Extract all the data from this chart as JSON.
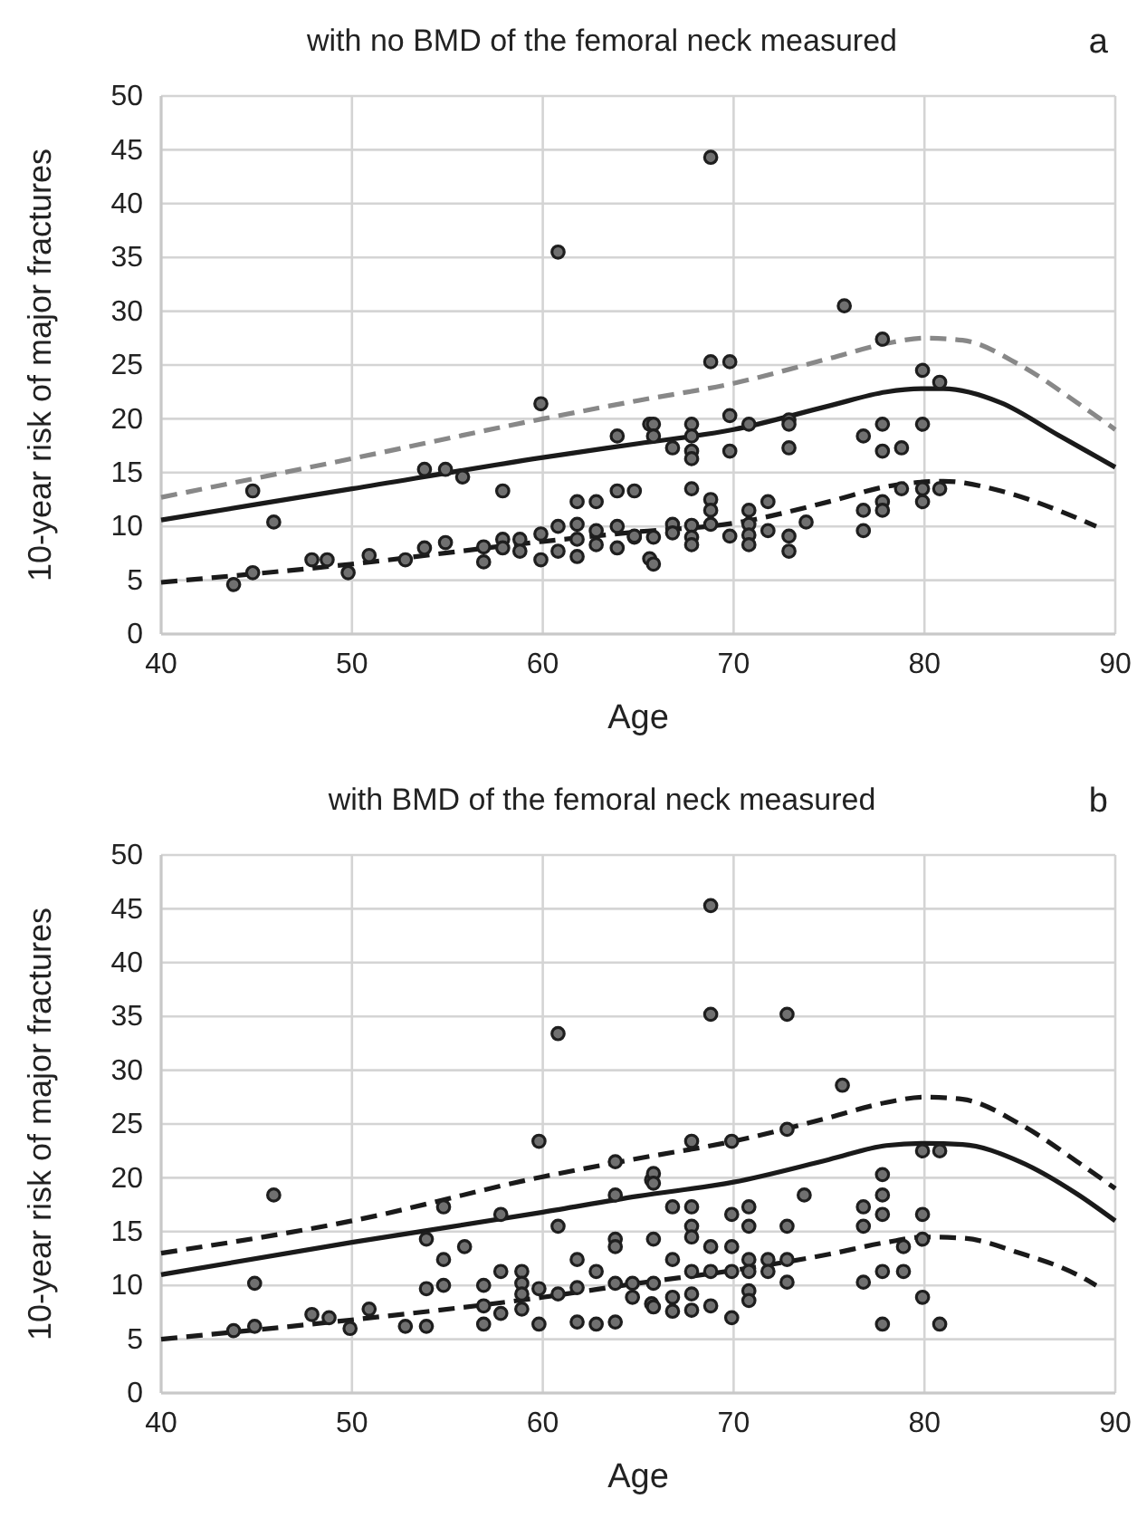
{
  "chart_data": [
    {
      "type": "scatter",
      "title": "with no BMD of the femoral neck measured",
      "xlabel": "Age",
      "ylabel": "10-year risk of major fractures",
      "annotations": [
        "a"
      ],
      "xlim": [
        40,
        90
      ],
      "xticks": [
        40,
        50,
        60,
        70,
        80,
        90
      ],
      "ylim": [
        0,
        50
      ],
      "yticks": [
        0,
        5,
        10,
        15,
        20,
        25,
        30,
        35,
        40,
        45,
        50
      ],
      "grid": true,
      "series": [
        {
          "type": "line",
          "color": "#888888",
          "line_style": "dashed",
          "x": [
            40,
            50,
            60,
            65,
            70,
            75,
            78,
            80,
            82,
            85,
            88,
            90
          ],
          "values": [
            12.7,
            16.3,
            20.0,
            21.7,
            23.3,
            25.6,
            27.0,
            27.5,
            27.3,
            25.0,
            21.5,
            19.0
          ]
        },
        {
          "type": "line",
          "color": "#1a1a1a",
          "line_style": "solid",
          "x": [
            40,
            50,
            60,
            65,
            70,
            75,
            78,
            80,
            81,
            84,
            87,
            90
          ],
          "values": [
            10.6,
            13.5,
            16.4,
            17.7,
            19.0,
            21.2,
            22.5,
            22.8,
            22.8,
            21.5,
            18.5,
            15.5
          ]
        },
        {
          "type": "line",
          "color": "#1a1a1a",
          "line_style": "dashed",
          "x": [
            40,
            50,
            60,
            65,
            70,
            75,
            78,
            81,
            84,
            87,
            89
          ],
          "values": [
            4.8,
            6.5,
            8.6,
            9.5,
            10.3,
            12.3,
            13.7,
            14.2,
            13.3,
            11.5,
            10.0
          ]
        },
        {
          "type": "scatter",
          "marker": "circle",
          "color": "#707070",
          "x": [
            44.8,
            45.9,
            43.8,
            44.8,
            47.9,
            48.7,
            49.8,
            50.9,
            52.8,
            53.8,
            54.9,
            55.8,
            53.8,
            54.9,
            56.9,
            56.9,
            57.9,
            57.9,
            57.9,
            58.8,
            58.8,
            59.9,
            60.8,
            59.9,
            59.9,
            60.8,
            60.8,
            61.8,
            62.8,
            61.8,
            61.8,
            61.8,
            62.8,
            62.8,
            63.9,
            63.9,
            64.8,
            63.9,
            63.9,
            64.8,
            65.6,
            65.6,
            68.8,
            65.8,
            65.8,
            67.8,
            67.8,
            66.8,
            67.8,
            67.8,
            68.8,
            69.8,
            69.8,
            69.8,
            70.8,
            72.9,
            72.9,
            72.9,
            75.8,
            77.8,
            79.9,
            80.8,
            76.8,
            77.8,
            77.8,
            78.8,
            79.9,
            67.8,
            68.8,
            68.8,
            68.8,
            70.8,
            71.8,
            66.8,
            66.8,
            67.8,
            67.8,
            67.8,
            65.8,
            65.8,
            64.8,
            69.8,
            70.8,
            70.8,
            70.8,
            71.8,
            72.9,
            72.9,
            73.8,
            76.8,
            76.8,
            77.8,
            77.8,
            78.8,
            79.9,
            79.9,
            80.8
          ],
          "values": [
            13.3,
            10.4,
            4.6,
            5.7,
            6.9,
            6.9,
            5.7,
            7.3,
            6.9,
            15.3,
            15.3,
            14.6,
            8.0,
            8.5,
            8.1,
            6.7,
            13.3,
            8.8,
            8.0,
            8.8,
            7.7,
            21.4,
            35.5,
            9.3,
            6.9,
            10.0,
            7.7,
            12.3,
            12.3,
            10.2,
            8.8,
            7.2,
            9.6,
            8.3,
            18.4,
            13.3,
            13.3,
            10.0,
            8.0,
            9.0,
            19.5,
            7.0,
            44.3,
            19.5,
            18.4,
            19.5,
            18.4,
            17.3,
            17.0,
            16.3,
            25.3,
            25.3,
            20.3,
            17.0,
            19.5,
            19.9,
            19.5,
            17.3,
            30.5,
            27.4,
            24.5,
            23.4,
            18.4,
            19.5,
            17.0,
            17.3,
            19.5,
            13.5,
            12.5,
            11.5,
            10.2,
            11.5,
            12.3,
            10.2,
            9.4,
            10.1,
            9.0,
            8.3,
            9.0,
            6.5,
            9.1,
            9.1,
            10.2,
            9.2,
            8.3,
            9.6,
            9.1,
            7.7,
            10.4,
            11.5,
            9.6,
            12.3,
            11.5,
            13.5,
            13.5,
            12.3,
            13.5
          ]
        }
      ]
    },
    {
      "type": "scatter",
      "title": "with BMD of the femoral neck measured",
      "xlabel": "Age",
      "ylabel": "10-year risk of major fractures",
      "annotations": [
        "b"
      ],
      "xlim": [
        40,
        90
      ],
      "xticks": [
        40,
        50,
        60,
        70,
        80,
        90
      ],
      "ylim": [
        0,
        50
      ],
      "yticks": [
        0,
        5,
        10,
        15,
        20,
        25,
        30,
        35,
        40,
        45,
        50
      ],
      "grid": true,
      "series": [
        {
          "type": "line",
          "color": "#1a1a1a",
          "line_style": "dashed",
          "x": [
            40,
            50,
            60,
            65,
            70,
            75,
            78,
            80,
            82,
            85,
            88,
            90
          ],
          "values": [
            13.0,
            16.0,
            20.1,
            21.8,
            23.4,
            25.6,
            27.0,
            27.5,
            27.3,
            25.0,
            21.5,
            19.0
          ]
        },
        {
          "type": "line",
          "color": "#1a1a1a",
          "line_style": "solid",
          "x": [
            40,
            50,
            60,
            65,
            70,
            75,
            78,
            80,
            82,
            85,
            88,
            90
          ],
          "values": [
            11.0,
            14.0,
            16.8,
            18.3,
            19.6,
            21.7,
            23.0,
            23.2,
            23.1,
            21.5,
            18.5,
            16.0
          ]
        },
        {
          "type": "line",
          "color": "#1a1a1a",
          "line_style": "dashed",
          "x": [
            40,
            50,
            60,
            65,
            70,
            75,
            78,
            80,
            82,
            85,
            88,
            89
          ],
          "values": [
            5.0,
            6.8,
            8.9,
            10.2,
            11.4,
            12.9,
            14.0,
            14.5,
            14.4,
            13.0,
            11.0,
            10.0
          ]
        },
        {
          "type": "scatter",
          "marker": "circle",
          "color": "#707070",
          "x": [
            45.9,
            44.9,
            43.8,
            44.9,
            47.9,
            48.8,
            49.9,
            50.9,
            52.8,
            53.9,
            53.9,
            53.9,
            54.8,
            54.8,
            54.8,
            55.9,
            56.9,
            56.9,
            56.9,
            57.8,
            57.8,
            57.8,
            58.9,
            58.9,
            58.9,
            58.9,
            59.8,
            59.8,
            59.8,
            60.8,
            60.8,
            60.8,
            61.8,
            61.8,
            61.8,
            62.8,
            62.8,
            63.8,
            63.8,
            63.8,
            63.8,
            63.8,
            63.8,
            64.7,
            64.7,
            65.7,
            65.7,
            65.8,
            65.8,
            65.8,
            65.8,
            65.8,
            66.8,
            66.8,
            66.8,
            66.8,
            67.8,
            67.8,
            67.8,
            67.8,
            67.8,
            67.8,
            67.8,
            68.8,
            68.8,
            68.8,
            68.8,
            68.8,
            69.9,
            69.9,
            69.9,
            69.9,
            69.9,
            70.8,
            70.8,
            70.8,
            70.8,
            70.8,
            70.8,
            71.8,
            71.8,
            72.8,
            72.8,
            72.8,
            72.8,
            72.8,
            73.7,
            75.7,
            76.8,
            76.8,
            76.8,
            77.8,
            77.8,
            77.8,
            77.8,
            77.8,
            78.9,
            78.9,
            79.9,
            80.8,
            79.9,
            79.9,
            79.9,
            80.8
          ],
          "values": [
            18.4,
            10.2,
            5.8,
            6.2,
            7.3,
            7.0,
            6.0,
            7.8,
            6.2,
            6.2,
            9.7,
            14.3,
            12.4,
            10.0,
            17.3,
            13.6,
            10.0,
            8.1,
            6.4,
            11.3,
            7.4,
            16.6,
            11.3,
            10.2,
            9.2,
            7.8,
            23.4,
            9.7,
            6.4,
            33.4,
            15.5,
            9.2,
            12.4,
            9.8,
            6.6,
            11.3,
            6.4,
            21.5,
            18.4,
            14.3,
            13.6,
            10.2,
            6.6,
            10.2,
            8.9,
            19.8,
            8.3,
            20.4,
            19.5,
            14.3,
            10.2,
            8.0,
            17.3,
            12.4,
            8.9,
            7.6,
            23.4,
            17.3,
            15.5,
            14.5,
            11.3,
            9.2,
            7.7,
            45.3,
            35.2,
            13.6,
            11.3,
            8.1,
            23.4,
            16.6,
            13.6,
            11.3,
            7.0,
            17.3,
            15.5,
            12.4,
            11.3,
            9.5,
            8.6,
            12.4,
            11.3,
            35.2,
            24.5,
            15.5,
            12.4,
            10.3,
            18.4,
            28.6,
            17.3,
            15.5,
            10.3,
            20.3,
            18.4,
            16.6,
            11.3,
            6.4,
            13.6,
            11.3,
            22.5,
            22.5,
            16.6,
            14.3,
            8.9,
            6.4
          ]
        }
      ]
    }
  ]
}
